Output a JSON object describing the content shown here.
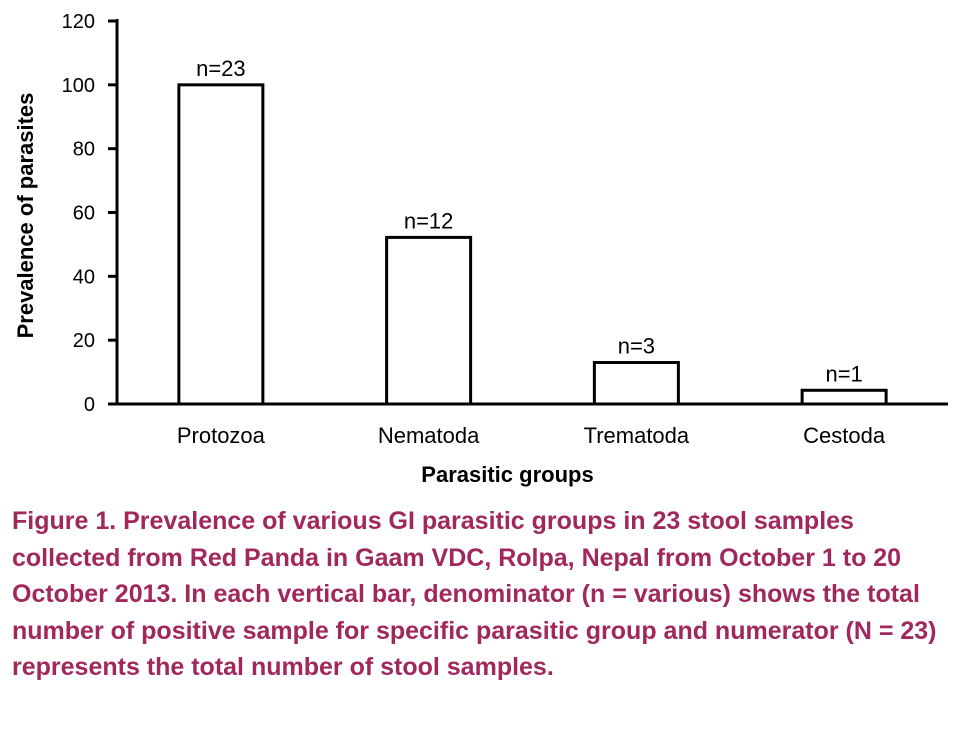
{
  "chart_data": {
    "type": "bar",
    "title": "",
    "categories": [
      "Protozoa",
      "Nematoda",
      "Trematoda",
      "Cestoda"
    ],
    "values": [
      100,
      52.2,
      13,
      4.3
    ],
    "data_labels": [
      "n=23",
      "n=12",
      "n=3",
      "n=1"
    ],
    "xlabel": "Parasitic groups",
    "ylabel": "Prevalence of parasites",
    "ylim": [
      0,
      120
    ],
    "yticks": [
      0,
      20,
      40,
      60,
      80,
      100,
      120
    ],
    "ytick_labels": [
      "0",
      "20",
      "40",
      "60",
      "80",
      "100",
      "120"
    ],
    "grid": false,
    "legend": "none"
  },
  "caption": {
    "text": "Figure 1. Prevalence of various GI parasitic groups in 23 stool samples collected from Red Panda in Gaam VDC, Rolpa, Nepal from October 1 to 20 October 2013. In each vertical bar, denominator (n = various) shows the total number of positive sample for specific parasitic group and numerator (N = 23) represents the total number of stool samples.",
    "color": "#a0285c"
  },
  "colors": {
    "bar_fill": "#ffffff",
    "bar_stroke": "#000000",
    "axis": "#000000"
  }
}
